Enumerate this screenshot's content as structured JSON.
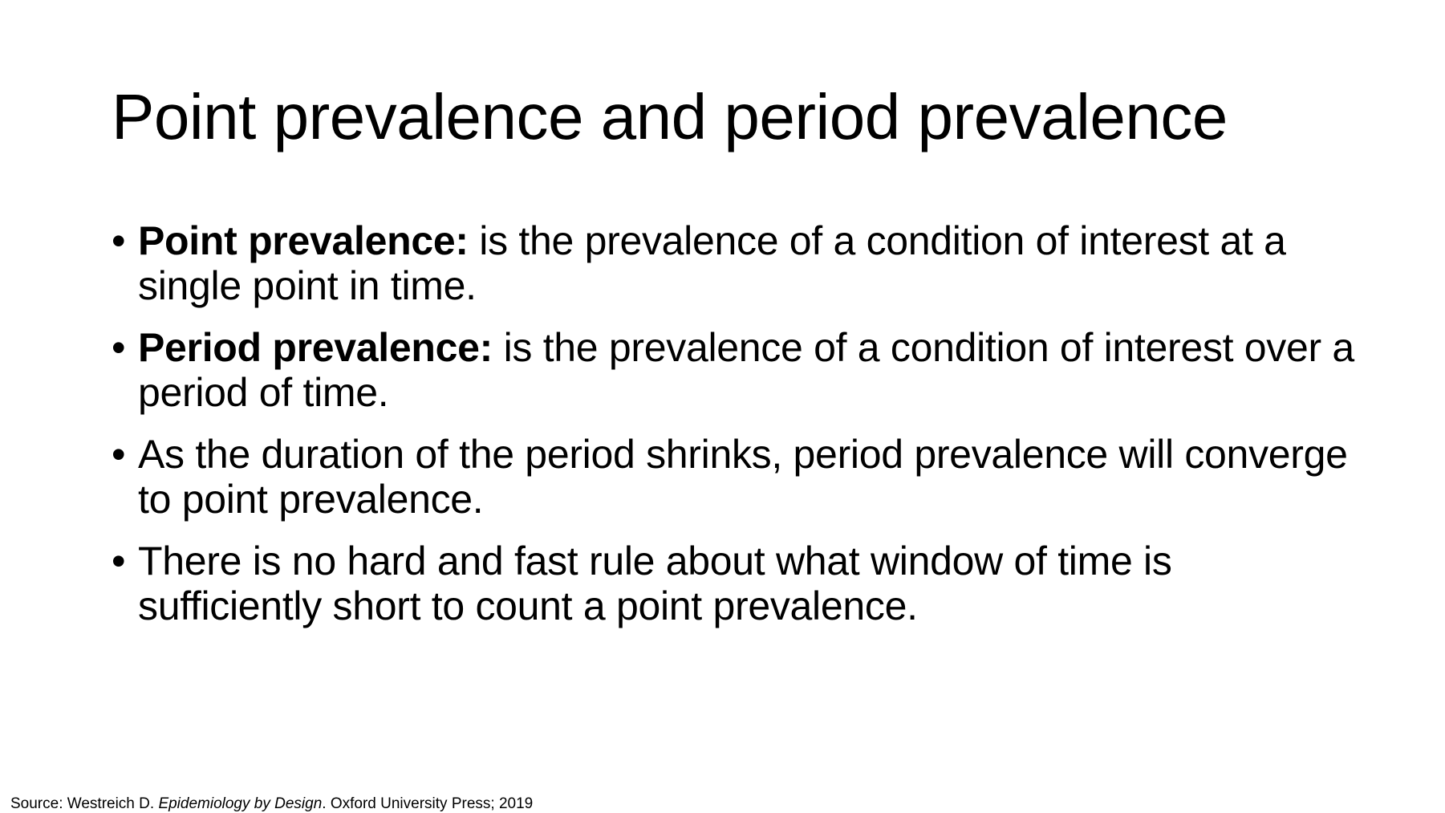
{
  "slide": {
    "title": "Point prevalence and period prevalence",
    "bullet_glyph": "•",
    "bullets": [
      {
        "term": "Point prevalence:",
        "text": " is the prevalence of a condition of interest at a single point in time."
      },
      {
        "term": "Period prevalence:",
        "text": " is the prevalence of a condition of interest over a period of time."
      },
      {
        "term": "",
        "text": "As the duration of the period shrinks, period prevalence will converge to point prevalence."
      },
      {
        "term": "",
        "text": "There is no hard and fast rule about what window of time is sufficiently short to count a point prevalence."
      }
    ],
    "source": {
      "prefix": "Source: Westreich D. ",
      "book_title": "Epidemiology by Design",
      "suffix": ". Oxford University Press; 2019"
    }
  }
}
